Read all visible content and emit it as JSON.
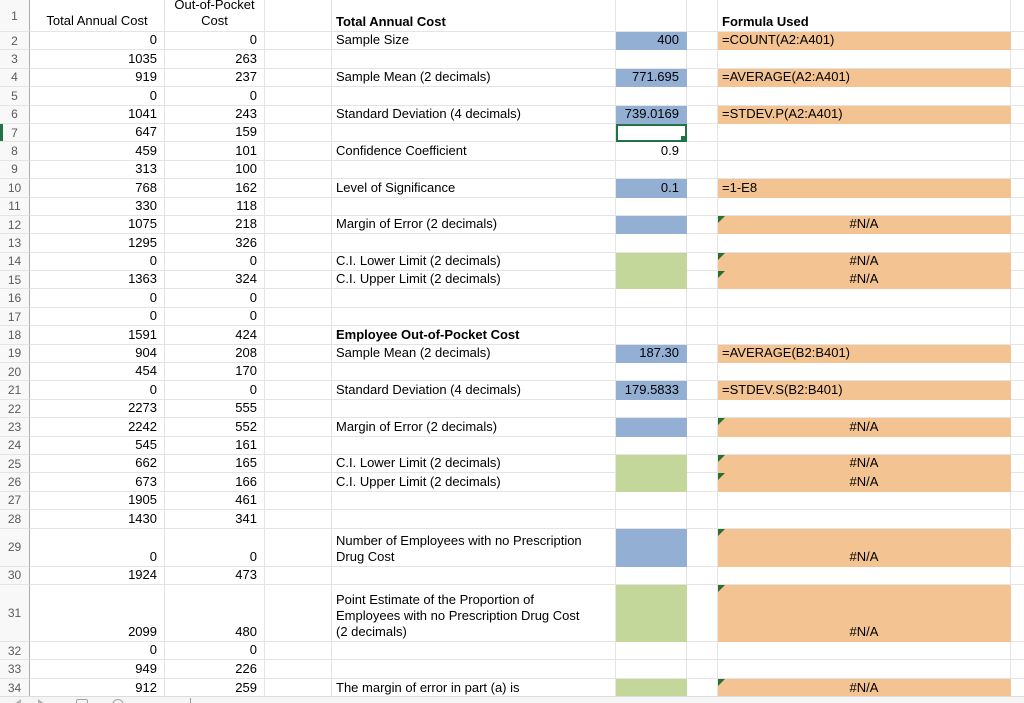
{
  "colors": {
    "blue": "#93B0D4",
    "green": "#C4D79B",
    "orange": "#F3C391",
    "selection": "#217346",
    "flag": "#2A6E35",
    "grid": "#E4E4E4"
  },
  "selection": {
    "active_row": "7",
    "active_value_column": true
  },
  "bottom_bar": {
    "icons": [
      "sheet-nav-left-icon",
      "sheet-nav-right-icon",
      "sheet-grid-icon",
      "sheet-search-icon"
    ]
  },
  "rows": [
    {
      "n": "1",
      "a": "Total Annual Cost",
      "b": "Out-of-Pocket\nCost",
      "d": "Total Annual Cost",
      "e": "",
      "g": "Formula Used",
      "d_bold": true,
      "g_bold": true
    },
    {
      "n": "2",
      "a": "0",
      "b": "0",
      "d": "Sample Size",
      "e": "400",
      "e_fill": "blue",
      "g": "=COUNT(A2:A401)",
      "g_fill": true
    },
    {
      "n": "3",
      "a": "1035",
      "b": "263",
      "d": "",
      "e": "",
      "g": ""
    },
    {
      "n": "4",
      "a": "919",
      "b": "237",
      "d": "Sample Mean (2 decimals)",
      "e": "771.695",
      "e_fill": "blue",
      "g": "=AVERAGE(A2:A401)",
      "g_fill": true
    },
    {
      "n": "5",
      "a": "0",
      "b": "0",
      "d": "",
      "e": "",
      "g": ""
    },
    {
      "n": "6",
      "a": "1041",
      "b": "243",
      "d": "Standard Deviation (4 decimals)",
      "e": "739.0169",
      "e_fill": "blue",
      "g": "=STDEV.P(A2:A401)",
      "g_fill": true
    },
    {
      "n": "7",
      "a": "647",
      "b": "159",
      "d": "",
      "e": "",
      "g": "",
      "active": true
    },
    {
      "n": "8",
      "a": "459",
      "b": "101",
      "d": "Confidence Coefficient",
      "e": "0.9",
      "g": ""
    },
    {
      "n": "9",
      "a": "313",
      "b": "100",
      "d": "",
      "e": "",
      "g": ""
    },
    {
      "n": "10",
      "a": "768",
      "b": "162",
      "d": "Level of Significance",
      "e": "0.1",
      "e_fill": "blue",
      "g": "=1-E8",
      "g_fill": true
    },
    {
      "n": "11",
      "a": "330",
      "b": "118",
      "d": "",
      "e": "",
      "g": ""
    },
    {
      "n": "12",
      "a": "1075",
      "b": "218",
      "d": "Margin of Error (2 decimals)",
      "e": "",
      "e_fill": "blue",
      "g": "#N/A",
      "g_fill": true,
      "g_flag": true,
      "g_center": true
    },
    {
      "n": "13",
      "a": "1295",
      "b": "326",
      "d": "",
      "e": "",
      "g": ""
    },
    {
      "n": "14",
      "a": "0",
      "b": "0",
      "d": "C.I. Lower Limit (2 decimals)",
      "e": "",
      "e_fill": "green",
      "g": "#N/A",
      "g_fill": true,
      "g_flag": true,
      "g_center": true
    },
    {
      "n": "15",
      "a": "1363",
      "b": "324",
      "d": "C.I. Upper Limit (2 decimals)",
      "e": "",
      "e_fill": "green",
      "g": "#N/A",
      "g_fill": true,
      "g_flag": true,
      "g_center": true
    },
    {
      "n": "16",
      "a": "0",
      "b": "0",
      "d": "",
      "e": "",
      "g": ""
    },
    {
      "n": "17",
      "a": "0",
      "b": "0",
      "d": "",
      "e": "",
      "g": ""
    },
    {
      "n": "18",
      "a": "1591",
      "b": "424",
      "d": "Employee Out-of-Pocket Cost",
      "e": "",
      "g": "",
      "d_bold": true
    },
    {
      "n": "19",
      "a": "904",
      "b": "208",
      "d": "Sample Mean (2 decimals)",
      "e": "187.30",
      "e_fill": "blue",
      "g": "=AVERAGE(B2:B401)",
      "g_fill": true
    },
    {
      "n": "20",
      "a": "454",
      "b": "170",
      "d": "",
      "e": "",
      "g": ""
    },
    {
      "n": "21",
      "a": "0",
      "b": "0",
      "d": "Standard Deviation (4 decimals)",
      "e": "179.5833",
      "e_fill": "blue",
      "g": "=STDEV.S(B2:B401)",
      "g_fill": true
    },
    {
      "n": "22",
      "a": "2273",
      "b": "555",
      "d": "",
      "e": "",
      "g": ""
    },
    {
      "n": "23",
      "a": "2242",
      "b": "552",
      "d": "Margin of Error (2 decimals)",
      "e": "",
      "e_fill": "blue",
      "g": "#N/A",
      "g_fill": true,
      "g_flag": true,
      "g_center": true
    },
    {
      "n": "24",
      "a": "545",
      "b": "161",
      "d": "",
      "e": "",
      "g": ""
    },
    {
      "n": "25",
      "a": "662",
      "b": "165",
      "d": "C.I. Lower Limit (2 decimals)",
      "e": "",
      "e_fill": "green",
      "g": "#N/A",
      "g_fill": true,
      "g_flag": true,
      "g_center": true
    },
    {
      "n": "26",
      "a": "673",
      "b": "166",
      "d": "C.I. Upper Limit (2 decimals)",
      "e": "",
      "e_fill": "green",
      "g": "#N/A",
      "g_fill": true,
      "g_flag": true,
      "g_center": true
    },
    {
      "n": "27",
      "a": "1905",
      "b": "461",
      "d": "",
      "e": "",
      "g": ""
    },
    {
      "n": "28",
      "a": "1430",
      "b": "341",
      "d": "",
      "e": "",
      "g": ""
    },
    {
      "n": "29",
      "a": "0",
      "b": "0",
      "d": "Number of Employees with no Prescription\nDrug Cost",
      "e": "",
      "e_fill": "blue",
      "g": "#N/A",
      "g_fill": true,
      "g_flag": true,
      "g_center": true
    },
    {
      "n": "30",
      "a": "1924",
      "b": "473",
      "d": "",
      "e": "",
      "g": ""
    },
    {
      "n": "31",
      "a": "2099",
      "b": "480",
      "d": "Point Estimate of the Proportion of\nEmployees with no Prescription Drug Cost\n(2 decimals)",
      "e": "",
      "e_fill": "green",
      "g": "#N/A",
      "g_fill": true,
      "g_flag": true,
      "g_center": true
    },
    {
      "n": "32",
      "a": "0",
      "b": "0",
      "d": "",
      "e": "",
      "g": ""
    },
    {
      "n": "33",
      "a": "949",
      "b": "226",
      "d": "",
      "e": "",
      "g": ""
    },
    {
      "n": "34",
      "a": "912",
      "b": "259",
      "d": "The margin of error in part (a) is",
      "e": "",
      "e_fill": "green",
      "g": "#N/A",
      "g_fill": true,
      "g_flag": true,
      "g_center": true
    }
  ]
}
